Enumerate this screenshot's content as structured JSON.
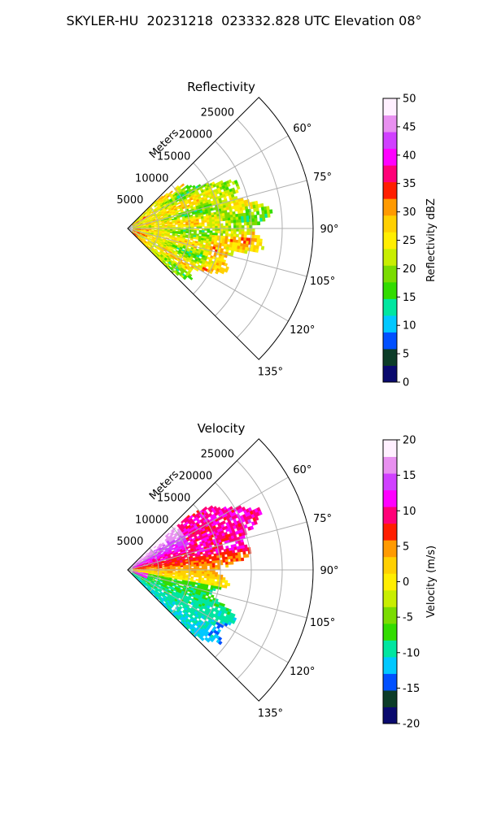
{
  "figure": {
    "title": "SKYLER-HU  20231218  023332.828 UTC Elevation 08°"
  },
  "chart_data": [
    {
      "type": "heatmap",
      "projection": "polar-sector",
      "title": "Reflectivity",
      "radial_axis_label": "Meters",
      "radial_ticks": [
        "5000",
        "10000",
        "15000",
        "20000",
        "25000"
      ],
      "angle_ticks": [
        "60°",
        "75°",
        "90°",
        "105°",
        "120°",
        "135°"
      ],
      "angle_range_deg": [
        45,
        135
      ],
      "range_m": [
        0,
        30000
      ],
      "colorbar": {
        "label": "Reflectivity dBZ",
        "range": [
          0,
          50
        ],
        "ticks": [
          "0",
          "5",
          "10",
          "15",
          "20",
          "25",
          "30",
          "35",
          "40",
          "45",
          "50"
        ]
      },
      "colormap": [
        "#0a0a6e",
        "#0c3c28",
        "#0050ff",
        "#00c8ff",
        "#00e6a0",
        "#32dc00",
        "#7adc00",
        "#c8ee00",
        "#ffee00",
        "#ffd000",
        "#ff9a00",
        "#ff1e00",
        "#ff0078",
        "#ff00ff",
        "#d040ff",
        "#e890f0",
        "#fff0ff"
      ]
    },
    {
      "type": "heatmap",
      "projection": "polar-sector",
      "title": "Velocity",
      "radial_axis_label": "Meters",
      "radial_ticks": [
        "5000",
        "10000",
        "15000",
        "20000",
        "25000"
      ],
      "angle_ticks": [
        "60°",
        "75°",
        "90°",
        "105°",
        "120°",
        "135°"
      ],
      "angle_range_deg": [
        45,
        135
      ],
      "range_m": [
        0,
        30000
      ],
      "colorbar": {
        "label": "Velocity (m/s)",
        "range": [
          -20,
          20
        ],
        "ticks": [
          "-20",
          "-15",
          "-10",
          "-5",
          "0",
          "5",
          "10",
          "15",
          "20"
        ]
      },
      "colormap": [
        "#0a0a6e",
        "#0c3c28",
        "#0050ff",
        "#00c8ff",
        "#00e6a0",
        "#32dc00",
        "#7adc00",
        "#c8ee00",
        "#ffee00",
        "#ffd000",
        "#ff9a00",
        "#ff1e00",
        "#ff0078",
        "#ff00ff",
        "#d040ff",
        "#e890f0",
        "#fff0ff"
      ]
    }
  ]
}
